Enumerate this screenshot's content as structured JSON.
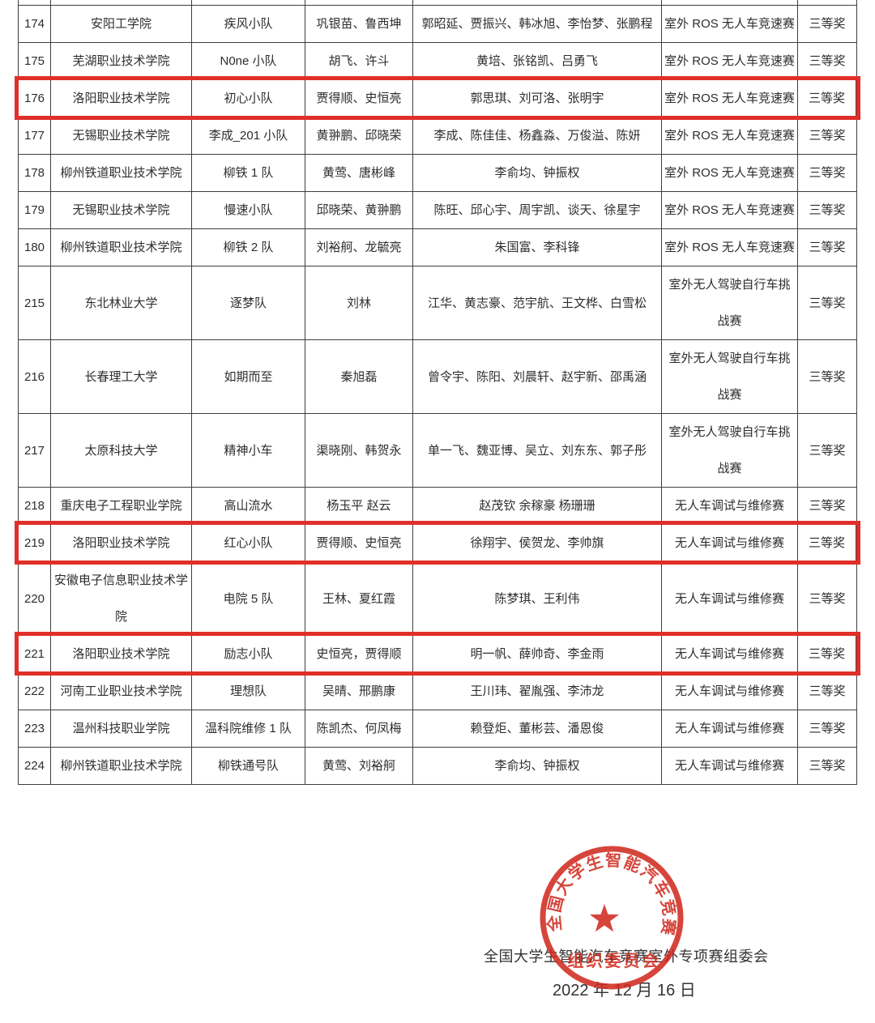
{
  "colors": {
    "highlight_border": "#e02f28",
    "table_border": "#3e3e3e",
    "seal_red": "#d02a1f",
    "text": "#2d2d2d"
  },
  "table": {
    "columns": [
      "no",
      "university",
      "team",
      "coaches",
      "members",
      "competition",
      "award"
    ],
    "rows": [
      {
        "no": "174",
        "university": "安阳工学院",
        "team": "疾风小队",
        "coaches": "巩银苗、鲁西坤",
        "members": "郭昭延、贾振兴、韩冰旭、李怡梦、张鹏程",
        "competition": "室外 ROS 无人车竞速赛",
        "award": "三等奖",
        "highlighted": false
      },
      {
        "no": "175",
        "university": "芜湖职业技术学院",
        "team": "N0ne 小队",
        "coaches": "胡飞、许斗",
        "members": "黄培、张铭凯、吕勇飞",
        "competition": "室外 ROS 无人车竞速赛",
        "award": "三等奖",
        "highlighted": false
      },
      {
        "no": "176",
        "university": "洛阳职业技术学院",
        "team": "初心小队",
        "coaches": "贾得顺、史恒亮",
        "members": "郭思琪、刘可洛、张明宇",
        "competition": "室外 ROS 无人车竞速赛",
        "award": "三等奖",
        "highlighted": true
      },
      {
        "no": "177",
        "university": "无锡职业技术学院",
        "team": "李成_201 小队",
        "coaches": "黄翀鹏、邱晓荣",
        "members": "李成、陈佳佳、杨鑫淼、万俊溢、陈妍",
        "competition": "室外 ROS 无人车竞速赛",
        "award": "三等奖",
        "highlighted": false
      },
      {
        "no": "178",
        "university": "柳州铁道职业技术学院",
        "team": "柳铁 1 队",
        "coaches": "黄莺、唐彬峰",
        "members": "李俞均、钟振权",
        "competition": "室外 ROS 无人车竞速赛",
        "award": "三等奖",
        "highlighted": false
      },
      {
        "no": "179",
        "university": "无锡职业技术学院",
        "team": "慢速小队",
        "coaches": "邱晓荣、黄翀鹏",
        "members": "陈旺、邱心宇、周宇凯、谈天、徐星宇",
        "competition": "室外 ROS 无人车竞速赛",
        "award": "三等奖",
        "highlighted": false
      },
      {
        "no": "180",
        "university": "柳州铁道职业技术学院",
        "team": "柳铁 2 队",
        "coaches": "刘裕舸、龙毓亮",
        "members": "朱国富、李科锋",
        "competition": "室外 ROS 无人车竞速赛",
        "award": "三等奖",
        "highlighted": false
      },
      {
        "no": "215",
        "university": "东北林业大学",
        "team": "逐梦队",
        "coaches": "刘林",
        "members": "江华、黄志豪、范宇航、王文桦、白雪松",
        "competition": "室外无人驾驶自行车挑战赛",
        "award": "三等奖",
        "highlighted": false
      },
      {
        "no": "216",
        "university": "长春理工大学",
        "team": "如期而至",
        "coaches": "秦旭磊",
        "members": "曾令宇、陈阳、刘晨轩、赵宇新、邵禹涵",
        "competition": "室外无人驾驶自行车挑战赛",
        "award": "三等奖",
        "highlighted": false
      },
      {
        "no": "217",
        "university": "太原科技大学",
        "team": "精神小车",
        "coaches": "渠晓刚、韩贺永",
        "members": "单一飞、魏亚博、吴立、刘东东、郭子彤",
        "competition": "室外无人驾驶自行车挑战赛",
        "award": "三等奖",
        "highlighted": false
      },
      {
        "no": "218",
        "university": "重庆电子工程职业学院",
        "team": "高山流水",
        "coaches": "杨玉平 赵云",
        "members": "赵茂钦 余稼豪 杨珊珊",
        "competition": "无人车调试与维修赛",
        "award": "三等奖",
        "highlighted": false
      },
      {
        "no": "219",
        "university": "洛阳职业技术学院",
        "team": "红心小队",
        "coaches": "贾得顺、史恒亮",
        "members": "徐翔宇、侯贺龙、李帅旗",
        "competition": "无人车调试与维修赛",
        "award": "三等奖",
        "highlighted": true
      },
      {
        "no": "220",
        "university": "安徽电子信息职业技术学院",
        "team": "电院 5 队",
        "coaches": "王林、夏红霞",
        "members": "陈梦琪、王利伟",
        "competition": "无人车调试与维修赛",
        "award": "三等奖",
        "highlighted": false
      },
      {
        "no": "221",
        "university": "洛阳职业技术学院",
        "team": "励志小队",
        "coaches": "史恒亮，贾得顺",
        "members": "明一帆、薛帅奇、李金雨",
        "competition": "无人车调试与维修赛",
        "award": "三等奖",
        "highlighted": true
      },
      {
        "no": "222",
        "university": "河南工业职业技术学院",
        "team": "理想队",
        "coaches": "吴晴、邢鹏康",
        "members": "王川玮、翟胤强、李沛龙",
        "competition": "无人车调试与维修赛",
        "award": "三等奖",
        "highlighted": false
      },
      {
        "no": "223",
        "university": "温州科技职业学院",
        "team": "温科院维修 1 队",
        "coaches": "陈凯杰、何凤梅",
        "members": "赖登炬、董彬芸、潘恩俊",
        "competition": "无人车调试与维修赛",
        "award": "三等奖",
        "highlighted": false
      },
      {
        "no": "224",
        "university": "柳州铁道职业技术学院",
        "team": "柳铁通号队",
        "coaches": "黄莺、刘裕舸",
        "members": "李俞均、钟振权",
        "competition": "无人车调试与维修赛",
        "award": "三等奖",
        "highlighted": false
      }
    ]
  },
  "footer": {
    "committee": "全国大学生智能汽车竞赛室外专项赛组委会",
    "date": "2022 年 12 月 16 日",
    "seal": {
      "arc_text": "全国大学生智能汽车竞赛室外专项赛",
      "center_text": "组织委员会",
      "star_icon": "red-star"
    }
  }
}
